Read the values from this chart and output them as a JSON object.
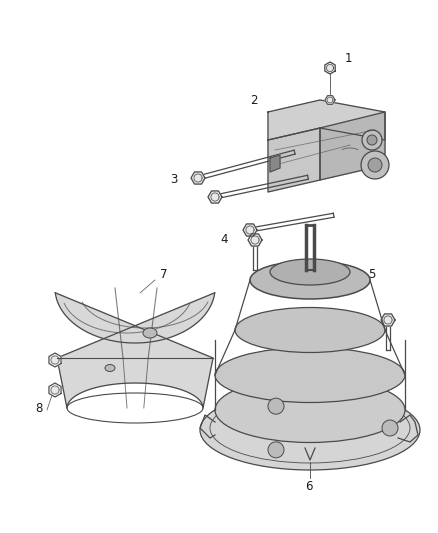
{
  "background_color": "#ffffff",
  "line_color": "#4a4a4a",
  "label_color": "#1a1a1a",
  "figsize": [
    4.38,
    5.33
  ],
  "dpi": 100
}
